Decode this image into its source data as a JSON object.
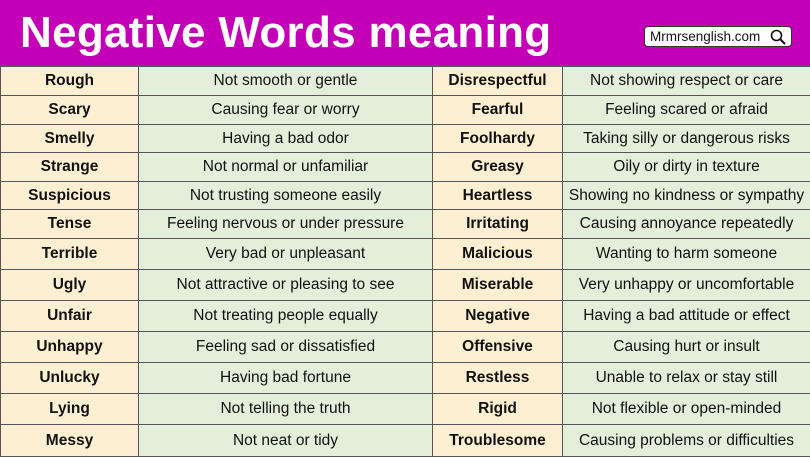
{
  "header": {
    "title": "Negative Words meaning",
    "site": "Mrmrsenglish.com",
    "site_icon": "search-icon",
    "background": "#c300b5"
  },
  "rows": [
    {
      "w1": "Rough",
      "m1": "Not smooth or gentle",
      "w2": "Disrespectful",
      "m2": "Not showing respect or care"
    },
    {
      "w1": "Scary",
      "m1": "Causing fear or worry",
      "w2": "Fearful",
      "m2": "Feeling scared or afraid"
    },
    {
      "w1": "Smelly",
      "m1": "Having a bad odor",
      "w2": "Foolhardy",
      "m2": "Taking silly or dangerous risks"
    },
    {
      "w1": "Strange",
      "m1": "Not normal or unfamiliar",
      "w2": "Greasy",
      "m2": "Oily or dirty in texture"
    },
    {
      "w1": "Suspicious",
      "m1": "Not trusting someone easily",
      "w2": "Heartless",
      "m2": "Showing no kindness or sympathy"
    },
    {
      "w1": "Tense",
      "m1": "Feeling nervous or under pressure",
      "w2": "Irritating",
      "m2": "Causing annoyance repeatedly"
    },
    {
      "w1": "Terrible",
      "m1": "Very bad or unpleasant",
      "w2": "Malicious",
      "m2": "Wanting to harm someone"
    },
    {
      "w1": "Ugly",
      "m1": "Not attractive or pleasing to see",
      "w2": "Miserable",
      "m2": "Very unhappy or uncomfortable"
    },
    {
      "w1": "Unfair",
      "m1": "Not treating people equally",
      "w2": "Negative",
      "m2": "Having a bad attitude or effect"
    },
    {
      "w1": "Unhappy",
      "m1": "Feeling sad or dissatisfied",
      "w2": "Offensive",
      "m2": "Causing hurt or insult"
    },
    {
      "w1": "Unlucky",
      "m1": "Having bad fortune",
      "w2": "Restless",
      "m2": "Unable to relax or stay still"
    },
    {
      "w1": "Lying",
      "m1": "Not telling the truth",
      "w2": "Rigid",
      "m2": "Not flexible or open-minded"
    },
    {
      "w1": "Messy",
      "m1": "Not neat or tidy",
      "w2": "Troublesome",
      "m2": "Causing problems or difficulties"
    }
  ]
}
